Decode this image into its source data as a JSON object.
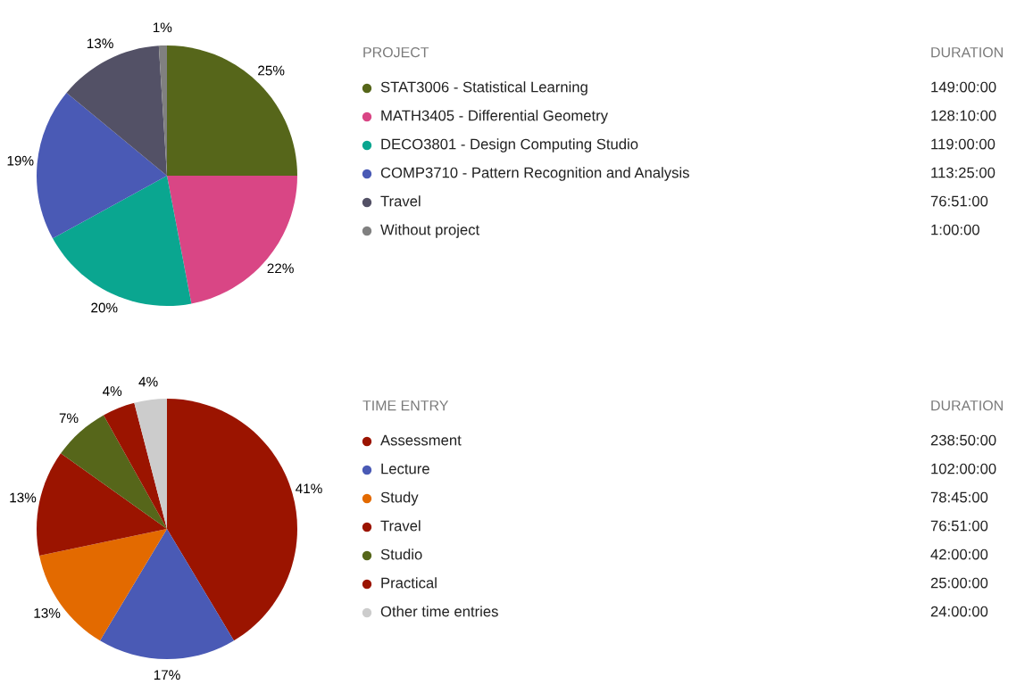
{
  "chart_data": [
    {
      "type": "pie",
      "legend_title": "PROJECT",
      "legend": "right",
      "categories": [
        "STAT3006 - Statistical Learning",
        "MATH3405 - Differential Geometry",
        "DECO3801 - Design Computing Studio",
        "COMP3710 - Pattern Recognition and Analysis",
        "Travel",
        "Without project"
      ],
      "values": [
        25,
        22,
        20,
        19,
        13,
        1
      ],
      "value_labels": [
        "25%",
        "22%",
        "20%",
        "19%",
        "13%",
        "1%"
      ],
      "colors": [
        "#56661a",
        "#d94685",
        "#0aa690",
        "#4a5ab5",
        "#535166",
        "#808080"
      ],
      "annotations": [
        "DURATION",
        "149:00:00",
        "128:10:00",
        "119:00:00",
        "113:25:00",
        "76:51:00",
        "1:00:00"
      ]
    },
    {
      "type": "pie",
      "legend_title": "TIME ENTRY",
      "legend": "right",
      "categories": [
        "Assessment",
        "Lecture",
        "Study",
        "Travel",
        "Studio",
        "Practical",
        "Other time entries"
      ],
      "values": [
        41,
        17,
        13,
        13,
        7,
        4,
        4
      ],
      "value_labels": [
        "41%",
        "17%",
        "13%",
        "13%",
        "7%",
        "4%",
        "4%"
      ],
      "colors": [
        "#9b1400",
        "#4a5ab5",
        "#e36a00",
        "#9b1400",
        "#56661a",
        "#9b1400",
        "#cccccc"
      ],
      "annotations": [
        "DURATION",
        "238:50:00",
        "102:00:00",
        "78:45:00",
        "76:51:00",
        "42:00:00",
        "25:00:00",
        "24:00:00"
      ]
    }
  ]
}
